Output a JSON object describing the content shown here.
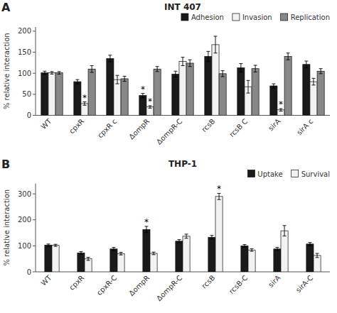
{
  "chart_data": [
    {
      "type": "bar",
      "panel_label": "A",
      "title": "INT 407",
      "y_label": "% relative interaction",
      "categories": [
        "WT",
        "cpxR",
        "cpxR c",
        "ΔompR",
        "ΔompR-C",
        "rcsB",
        "rcsB C",
        "sirA",
        "sirA c"
      ],
      "series": [
        {
          "name": "Adhesion",
          "color": "#1a1a1a",
          "values": [
            101,
            80,
            135,
            47,
            98,
            140,
            113,
            70,
            121
          ],
          "errors": [
            4,
            5,
            8,
            5,
            7,
            12,
            10,
            5,
            8
          ]
        },
        {
          "name": "Invasion",
          "color": "#f2f2f2",
          "values": [
            101,
            28,
            85,
            20,
            128,
            168,
            68,
            13,
            80
          ],
          "errors": [
            3,
            4,
            10,
            3,
            10,
            20,
            15,
            3,
            8
          ]
        },
        {
          "name": "Replication",
          "color": "#888888",
          "values": [
            101,
            110,
            87,
            110,
            124,
            99,
            111,
            140,
            105
          ],
          "errors": [
            3,
            8,
            6,
            6,
            8,
            7,
            8,
            8,
            6
          ]
        }
      ],
      "annotations": [
        {
          "text": "*",
          "series": 0,
          "index": 3
        },
        {
          "text": "*",
          "series": 1,
          "index": 1
        },
        {
          "text": "*",
          "series": 1,
          "index": 3
        },
        {
          "text": "*",
          "series": 1,
          "index": 7
        }
      ],
      "ylim": [
        0,
        210
      ],
      "yticks": [
        0,
        50,
        100,
        150,
        200
      ],
      "grid": false,
      "legend": "upper right"
    },
    {
      "type": "bar",
      "panel_label": "B",
      "title": "THP-1",
      "y_label": "% relative interaction",
      "categories": [
        "WT",
        "cpxR",
        "cpxR-C",
        "ΔompR",
        "ΔompR-C",
        "rcsB",
        "rcsB-C",
        "sirA",
        "sirA-C"
      ],
      "series": [
        {
          "name": "Uptake",
          "color": "#1a1a1a",
          "values": [
            103,
            73,
            88,
            163,
            118,
            133,
            100,
            88,
            107
          ],
          "errors": [
            4,
            5,
            6,
            12,
            6,
            7,
            5,
            6,
            6
          ]
        },
        {
          "name": "Survival",
          "color": "#f2f2f2",
          "values": [
            102,
            50,
            70,
            71,
            137,
            290,
            84,
            158,
            63
          ],
          "errors": [
            4,
            6,
            5,
            5,
            8,
            12,
            5,
            20,
            8
          ]
        }
      ],
      "annotations": [
        {
          "text": "*",
          "series": 0,
          "index": 3
        },
        {
          "text": "*",
          "series": 1,
          "index": 5
        }
      ],
      "ylim": [
        0,
        340
      ],
      "yticks": [
        0,
        100,
        200,
        300
      ],
      "grid": false,
      "legend": "upper right"
    }
  ]
}
